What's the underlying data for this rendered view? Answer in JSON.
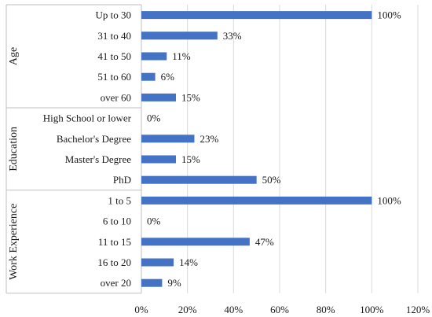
{
  "chart_data": {
    "type": "bar",
    "orientation": "horizontal",
    "xlim": [
      0,
      120
    ],
    "x_ticks": [
      "0%",
      "20%",
      "40%",
      "60%",
      "80%",
      "100%",
      "120%"
    ],
    "x_tick_values": [
      0,
      20,
      40,
      60,
      80,
      100,
      120
    ],
    "grid": true,
    "bar_color": "#4472c4",
    "groups": [
      {
        "name": "Age",
        "categories": [
          "Up to 30",
          "31 to 40",
          "41 to 50",
          "51 to 60",
          "over 60"
        ],
        "values": [
          100,
          33,
          11,
          6,
          15
        ],
        "labels": [
          "100%",
          "33%",
          "11%",
          "6%",
          "15%"
        ]
      },
      {
        "name": "Education",
        "categories": [
          "High School or lower",
          "Bachelor's Degree",
          "Master's Degree",
          "PhD"
        ],
        "values": [
          0,
          23,
          15,
          50
        ],
        "labels": [
          "0%",
          "23%",
          "15%",
          "50%"
        ]
      },
      {
        "name": "Work Experience",
        "categories": [
          "1 to 5",
          "6 to 10",
          "11 to 15",
          "16 to 20",
          "over 20"
        ],
        "values": [
          100,
          0,
          47,
          14,
          9
        ],
        "labels": [
          "100%",
          "0%",
          "47%",
          "14%",
          "9%"
        ]
      }
    ]
  }
}
